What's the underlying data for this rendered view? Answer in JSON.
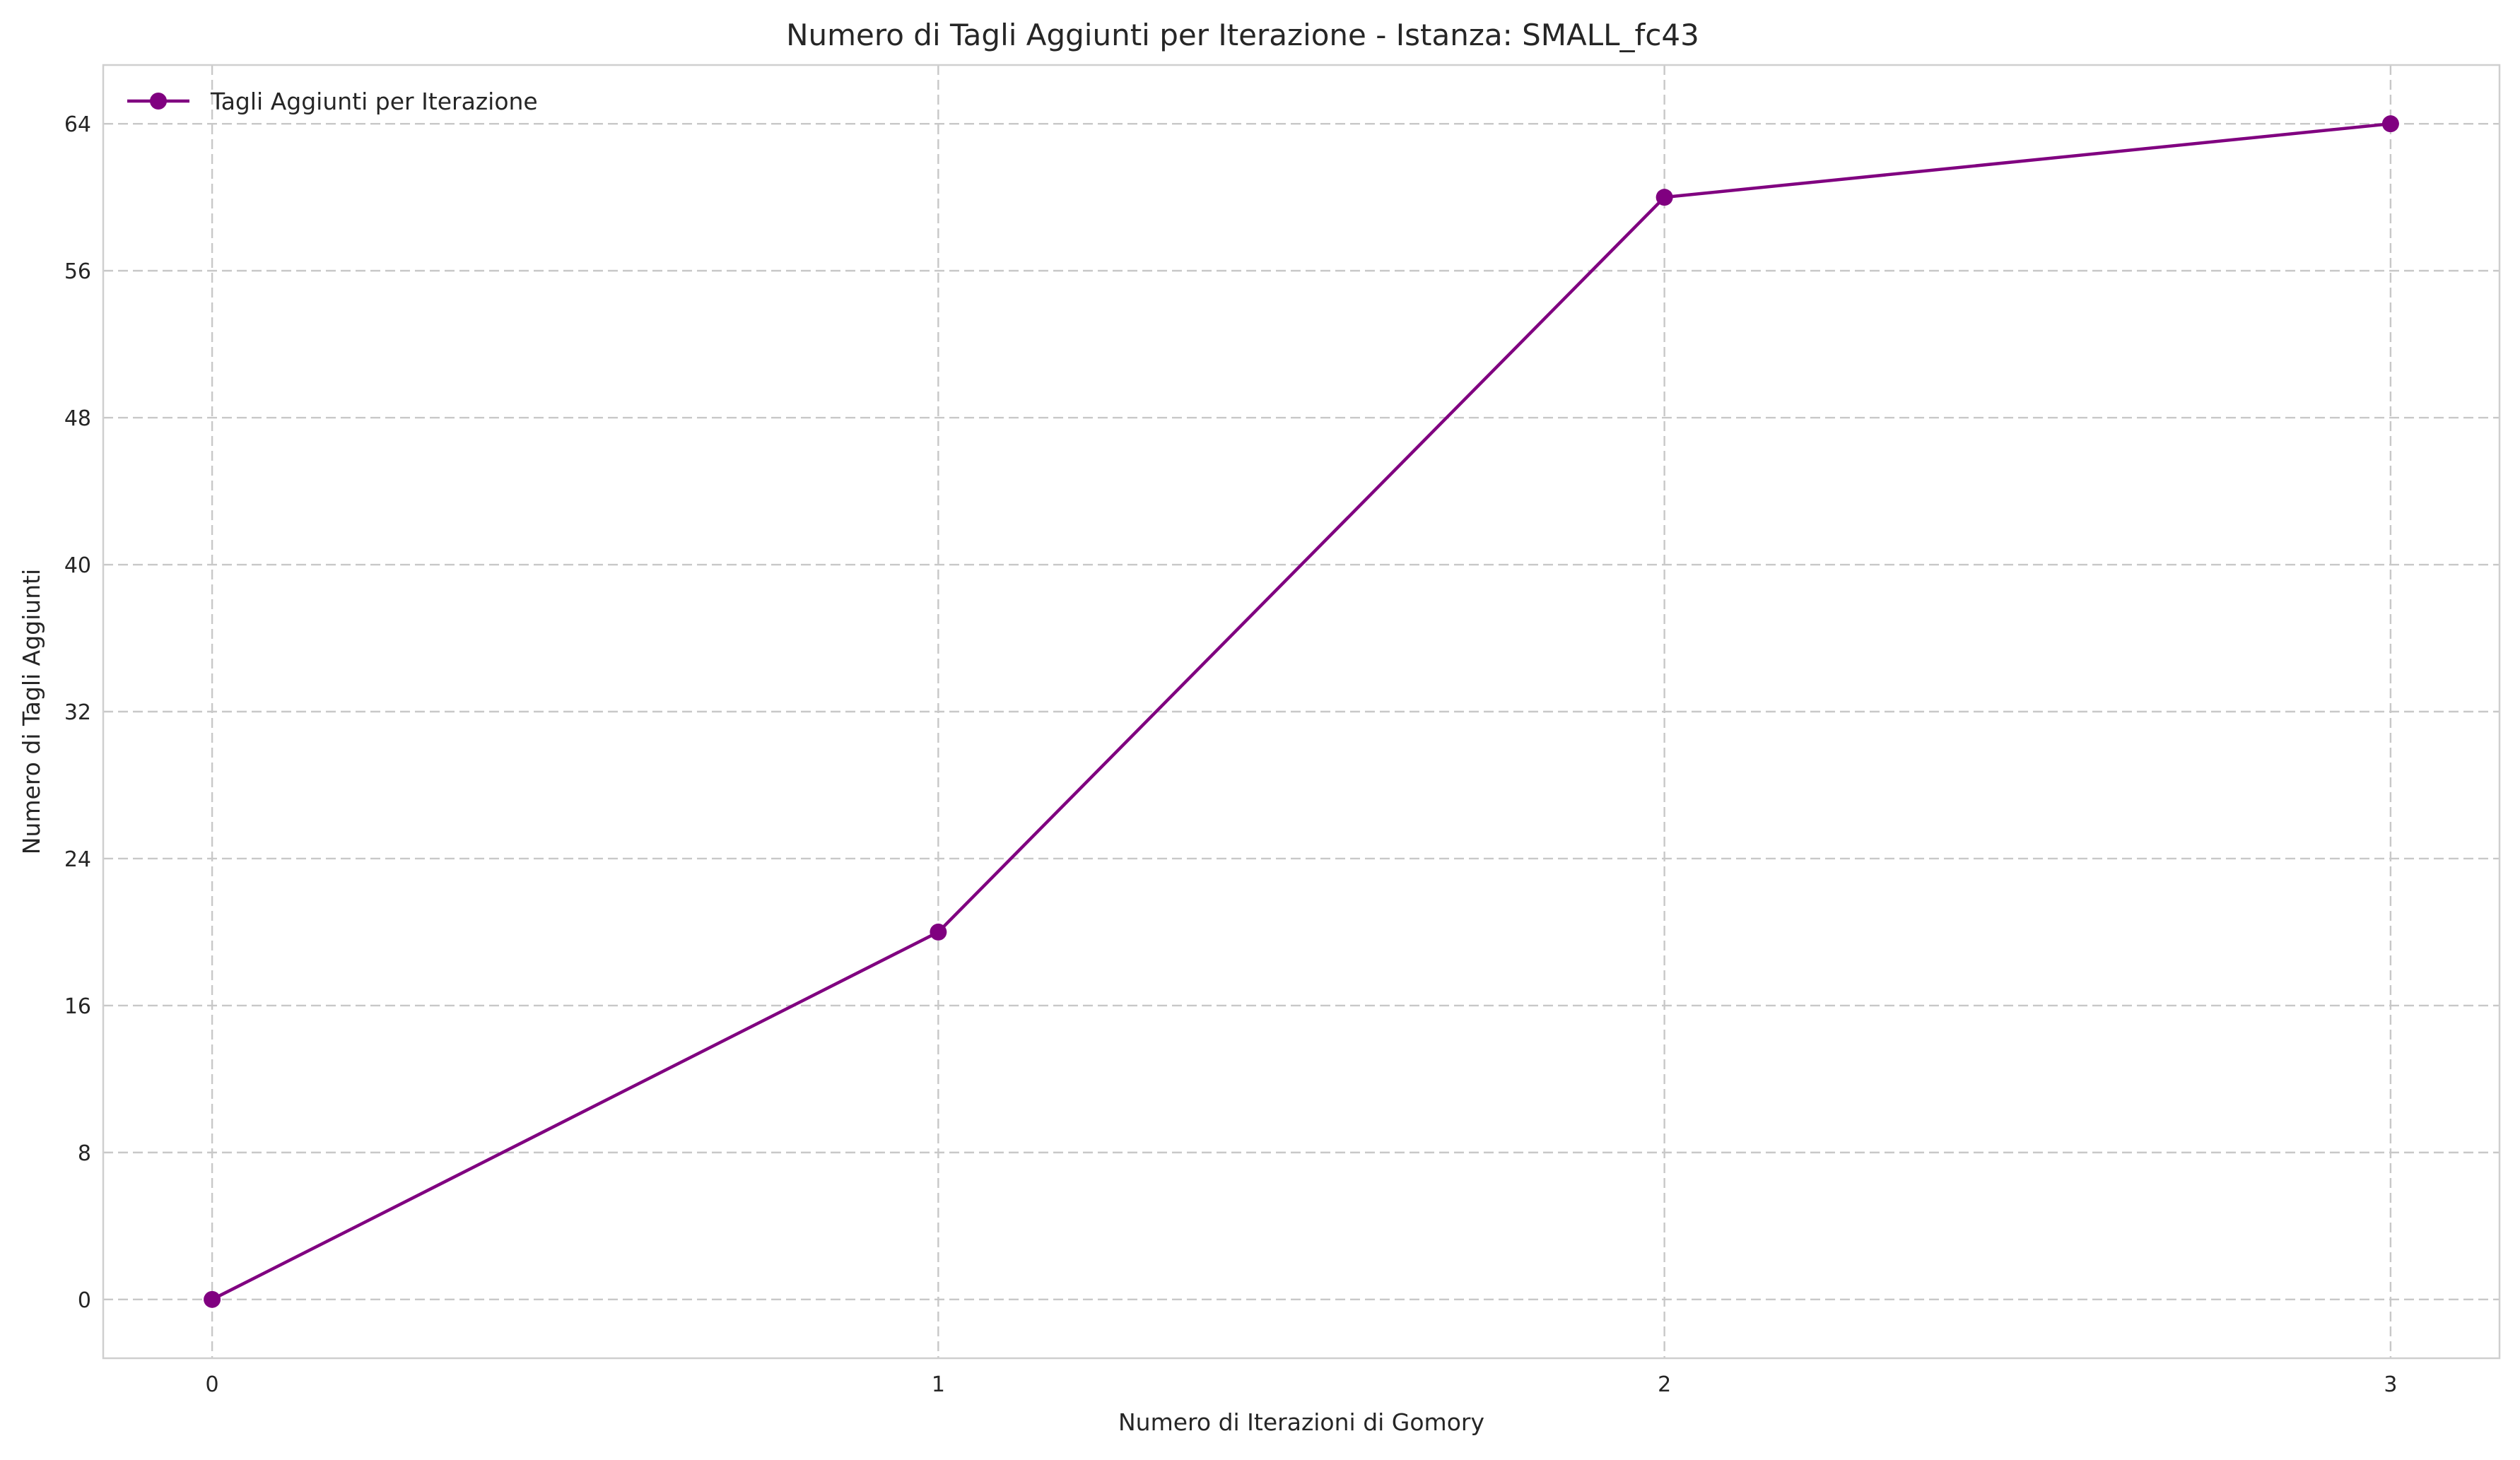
{
  "chart_data": {
    "type": "line",
    "title": "Numero di Tagli Aggiunti per Iterazione - Istanza: SMALL_fc43",
    "xlabel": "Numero di Iterazioni di Gomory",
    "ylabel": "Numero di Tagli Aggiunti",
    "x": [
      0,
      1,
      2,
      3
    ],
    "x_ticks": [
      "0",
      "1",
      "2",
      "3"
    ],
    "y_ticks": [
      "0",
      "8",
      "16",
      "24",
      "32",
      "40",
      "48",
      "56",
      "64"
    ],
    "xlim": [
      -0.15,
      3.15
    ],
    "ylim": [
      -3.2,
      67.2
    ],
    "grid": true,
    "legend_position": "top-left",
    "series": [
      {
        "name": "Tagli Aggiunti per Iterazione",
        "values": [
          0,
          20,
          60,
          64
        ],
        "color": "#800080",
        "marker": "circle"
      }
    ]
  }
}
